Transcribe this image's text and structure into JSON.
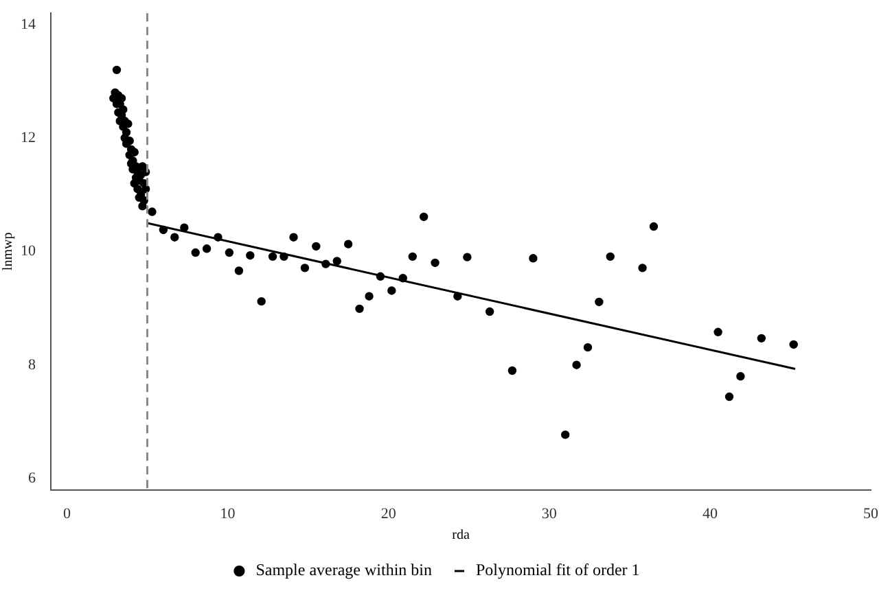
{
  "chart_data": {
    "type": "scatter",
    "xlabel": "rda",
    "ylabel": "lnmwp",
    "xlim": [
      -1,
      50
    ],
    "ylim": [
      5.8,
      14.2
    ],
    "xticks": [
      0,
      10,
      20,
      30,
      40,
      50
    ],
    "yticks": [
      6,
      8,
      10,
      12,
      14
    ],
    "grid": false,
    "legend": "bottom",
    "ref_lines": [
      {
        "axis": "x",
        "value": 5,
        "color": "#888888",
        "line_style": "dashed"
      }
    ],
    "series": [
      {
        "name": "Sample average within bin",
        "marker": "circle",
        "color": "#000000",
        "x": [
          3.1,
          3.0,
          2.9,
          3.1,
          3.2,
          3.3,
          3.4,
          3.2,
          3.4,
          3.5,
          3.6,
          3.5,
          3.7,
          3.8,
          3.7,
          3.9,
          4.0,
          3.9,
          4.1,
          4.2,
          4.1,
          4.3,
          4.4,
          4.3,
          4.5,
          4.4,
          4.6,
          4.7,
          4.6,
          4.8,
          4.8,
          4.5,
          4.9,
          4.9,
          4.7,
          4.2,
          3.6,
          3.3,
          4.0,
          5.3,
          6.0,
          6.7,
          7.3,
          8.0,
          8.7,
          9.4,
          10.1,
          10.7,
          11.4,
          12.1,
          12.8,
          13.5,
          14.1,
          14.8,
          15.5,
          16.1,
          16.8,
          17.5,
          18.2,
          18.8,
          19.5,
          20.2,
          20.9,
          21.5,
          22.2,
          22.9,
          24.3,
          24.9,
          26.3,
          27.7,
          29.0,
          31.0,
          31.7,
          32.4,
          33.1,
          33.8,
          35.8,
          36.5,
          40.5,
          41.2,
          41.9,
          43.2,
          45.2
        ],
        "values": [
          13.2,
          12.8,
          12.7,
          12.6,
          12.75,
          12.6,
          12.7,
          12.45,
          12.4,
          12.5,
          12.3,
          12.2,
          12.1,
          12.25,
          11.9,
          11.95,
          11.8,
          11.7,
          11.6,
          11.75,
          11.45,
          11.5,
          11.4,
          11.3,
          11.25,
          11.1,
          11.35,
          11.5,
          11.0,
          11.2,
          10.9,
          10.95,
          11.4,
          11.1,
          10.8,
          11.2,
          12.0,
          12.3,
          11.55,
          10.7,
          10.38,
          10.25,
          10.42,
          9.98,
          10.05,
          10.25,
          9.98,
          9.66,
          9.93,
          9.12,
          9.91,
          9.91,
          10.25,
          9.71,
          10.09,
          9.78,
          9.83,
          10.13,
          8.99,
          9.21,
          9.56,
          9.31,
          9.53,
          9.91,
          10.61,
          9.8,
          9.21,
          9.9,
          8.94,
          7.9,
          9.88,
          6.77,
          8.0,
          8.31,
          9.11,
          9.91,
          9.71,
          10.44,
          8.58,
          7.44,
          7.8,
          8.47,
          8.36
        ]
      },
      {
        "name": "Polynomial fit of order 1",
        "type": "line",
        "marker": "none",
        "color": "#000000",
        "x": [
          5,
          45.3
        ],
        "values": [
          10.5,
          7.93
        ]
      }
    ]
  }
}
